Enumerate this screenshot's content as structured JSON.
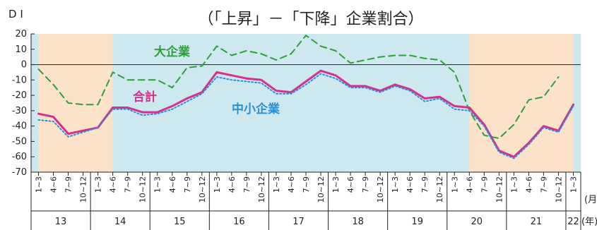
{
  "chart_data": {
    "type": "line",
    "title": "（「上昇」－「下降」企業割合）",
    "ylabel": "D I",
    "ylim": [
      -70,
      20
    ],
    "yticks": [
      20,
      10,
      0,
      -10,
      -20,
      -30,
      -40,
      -50,
      -60,
      -70
    ],
    "grid": false,
    "month_unit": "(月)",
    "year_unit": "(年)",
    "quarters": [
      "1~3",
      "4~6",
      "7~9",
      "10~12",
      "1~3",
      "4~6",
      "7~9",
      "10~12",
      "1~3",
      "4~6",
      "7~9",
      "10~12",
      "1~3",
      "4~6",
      "7~9",
      "10~12",
      "1~3",
      "4~6",
      "7~9",
      "10~12",
      "1~3",
      "4~6",
      "7~9",
      "10~12",
      "1~3",
      "4~6",
      "7~9",
      "10~12",
      "1~3",
      "4~6",
      "7~9",
      "10~12",
      "1~3",
      "4~6",
      "7~9",
      "10~12",
      "1~3"
    ],
    "years": [
      {
        "label": "13",
        "start": 0,
        "count": 4
      },
      {
        "label": "14",
        "start": 4,
        "count": 4
      },
      {
        "label": "15",
        "start": 8,
        "count": 4
      },
      {
        "label": "16",
        "start": 12,
        "count": 4
      },
      {
        "label": "17",
        "start": 16,
        "count": 4
      },
      {
        "label": "18",
        "start": 20,
        "count": 4
      },
      {
        "label": "19",
        "start": 24,
        "count": 4
      },
      {
        "label": "20",
        "start": 28,
        "count": 4
      },
      {
        "label": "21",
        "start": 32,
        "count": 4
      },
      {
        "label": "22",
        "start": 36,
        "count": 1
      }
    ],
    "shaded_ranges": [
      [
        0,
        5
      ],
      [
        29,
        36
      ]
    ],
    "series": [
      {
        "name": "大企業",
        "color": "#2e9e3e",
        "style": "dashed",
        "values": [
          -3,
          -13,
          -25,
          -26,
          -26,
          -5,
          -10,
          -10,
          -10,
          -15,
          -2,
          -1,
          12,
          6,
          9,
          7,
          3,
          7,
          19,
          12,
          9,
          1,
          3,
          5,
          6,
          6,
          4,
          3,
          -5,
          -30,
          -46,
          -48,
          -39,
          -23,
          -21,
          -8,
          null
        ]
      },
      {
        "name": "合計",
        "color": "#d6308a",
        "style": "solid",
        "values": [
          -32,
          -34,
          -45,
          -43,
          -41,
          -28,
          -28,
          -31,
          -31,
          -27,
          -22,
          -18,
          -5,
          -7,
          -9,
          -10,
          -17,
          -18,
          -11,
          -4,
          -7,
          -14,
          -14,
          -17,
          -13,
          -16,
          -22,
          -21,
          -27,
          -28,
          -39,
          -56,
          -60,
          -51,
          -40,
          -43,
          -26
        ]
      },
      {
        "name": "中小企業",
        "color": "#2a8fd6",
        "style": "dotted",
        "values": [
          -36,
          -37,
          -47,
          -44,
          -41,
          -29,
          -29,
          -33,
          -32,
          -29,
          -24,
          -19,
          -8,
          -10,
          -11,
          -12,
          -19,
          -19,
          -13,
          -6,
          -9,
          -15,
          -15,
          -18,
          -14,
          -17,
          -24,
          -22,
          -29,
          -30,
          -40,
          -57,
          -61,
          -52,
          -41,
          -44,
          -27
        ]
      }
    ]
  }
}
